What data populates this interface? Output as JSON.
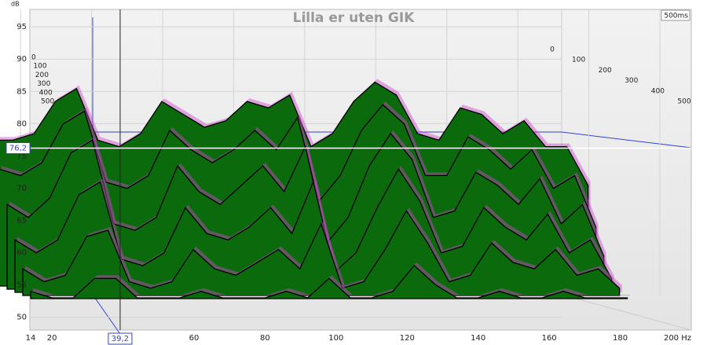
{
  "chart_data": {
    "type": "waterfall",
    "title": "Lilla er uten GIK",
    "ylabel": "dB",
    "x": [
      14,
      20,
      26,
      32,
      38,
      44,
      50,
      56,
      62,
      68,
      74,
      80,
      86,
      92,
      98,
      104,
      110,
      116,
      122,
      128,
      134,
      140,
      146,
      152,
      158,
      164,
      170,
      176,
      182
    ],
    "slices": [
      {
        "time": 0,
        "values": [
          75,
          75,
          76,
          81,
          83,
          75,
          74,
          76,
          81,
          79,
          77,
          78,
          81,
          80,
          82,
          74,
          76,
          81,
          84,
          82,
          76,
          75,
          80,
          79,
          76,
          78,
          74,
          74,
          68
        ]
      },
      {
        "time": 100,
        "values": [
          71,
          70,
          72,
          78,
          80,
          69,
          68,
          70,
          77,
          74,
          72,
          74,
          77,
          74,
          79,
          66,
          70,
          77,
          81,
          78,
          70,
          70,
          76,
          74,
          71,
          74,
          68,
          70,
          62
        ]
      },
      {
        "time": 200,
        "values": [
          66,
          64,
          67,
          74,
          76,
          63,
          62,
          64,
          72,
          68,
          66,
          69,
          72,
          68,
          75,
          60,
          64,
          72,
          77,
          73,
          64,
          65,
          71,
          69,
          66,
          70,
          63,
          66,
          58
        ]
      },
      {
        "time": 300,
        "values": [
          61,
          59,
          61,
          68,
          70,
          58,
          57,
          59,
          66,
          62,
          61,
          63,
          66,
          62,
          70,
          56,
          59,
          66,
          72,
          67,
          59,
          60,
          66,
          63,
          61,
          65,
          59,
          61,
          55
        ]
      },
      {
        "time": 400,
        "values": [
          57,
          55,
          56,
          62,
          63,
          55,
          54,
          55,
          60,
          57,
          56,
          58,
          60,
          57,
          64,
          54,
          55,
          60,
          66,
          61,
          55,
          56,
          61,
          58,
          57,
          60,
          56,
          57,
          54
        ]
      },
      {
        "time": 500,
        "values": [
          54,
          53,
          53,
          56,
          56,
          53,
          53,
          53,
          54,
          53,
          53,
          53,
          54,
          53,
          56,
          53,
          53,
          54,
          58,
          55,
          53,
          53,
          54,
          53,
          53,
          54,
          53,
          53,
          53
        ]
      }
    ],
    "fill_color": "#0b6a0b",
    "edge_color": "#000000",
    "halo_color": "#cc44cc",
    "xlim": [
      14,
      200
    ],
    "xticks": [
      14,
      20,
      40,
      60,
      80,
      100,
      120,
      140,
      160,
      180,
      {
        "value": 200,
        "label": "200 Hz"
      }
    ],
    "ylim": [
      48,
      97.7
    ],
    "yticks": [
      50,
      55,
      60,
      65,
      70,
      75,
      80,
      85,
      90,
      95
    ],
    "zticks": [
      0,
      100,
      200,
      300,
      400,
      500
    ],
    "time_readout": "500ms",
    "cursor": {
      "x": {
        "value": 39.2,
        "label": "39,2"
      },
      "y": {
        "value": 76.2,
        "label": "76,2"
      }
    },
    "grid": true
  }
}
